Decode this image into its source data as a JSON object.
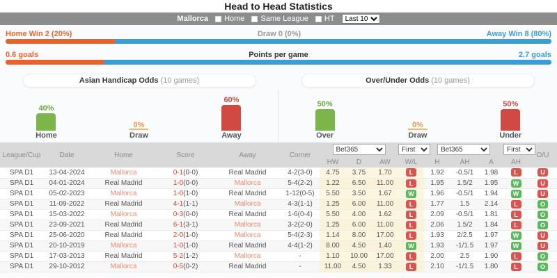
{
  "title": "Head to Head Statistics",
  "filterbar": {
    "team": "Mallorca",
    "checkboxes": [
      "Home",
      "Same League",
      "HT"
    ],
    "range_select": "Last 10"
  },
  "summary_bars": [
    {
      "left": "Home Win 2 (20%)",
      "center": "Draw 0 (0%)",
      "right": "Away Win 8 (80%)",
      "left_pct": 20
    },
    {
      "left": "0.6 goals",
      "center": "Points per game",
      "right": "2.7 goals",
      "left_pct": 18
    }
  ],
  "section_buttons": [
    {
      "label": "Asian Handicap Odds",
      "sub": " (10 games)"
    },
    {
      "label": "Over/Under Odds",
      "sub": " (10 games)"
    }
  ],
  "chart_data": [
    {
      "type": "bar",
      "title": "Asian Handicap Odds (10 games)",
      "categories": [
        "Home",
        "Draw",
        "Away"
      ],
      "values": [
        40,
        0,
        60
      ],
      "value_labels": [
        "40%",
        "0%",
        "60%"
      ],
      "unit": "%",
      "ylim": [
        0,
        100
      ]
    },
    {
      "type": "bar",
      "title": "Over/Under Odds (10 games)",
      "categories": [
        "Over",
        "Draw",
        "Under"
      ],
      "values": [
        50,
        0,
        50
      ],
      "value_labels": [
        "50%",
        "0%",
        "50%"
      ],
      "unit": "%",
      "ylim": [
        0,
        100
      ]
    }
  ],
  "colors": {
    "accent_orange": "#e8632c",
    "accent_blue": "#3b9dd6",
    "bar_green": "#7cb54a",
    "bar_red": "#d04a42",
    "bar_orange": "#ef9445",
    "badge_win": "#5cb85c",
    "badge_loss": "#d9534f",
    "team_highlight": "#ef8a70"
  },
  "table": {
    "main_headers": [
      "League/Cup",
      "Date",
      "Home",
      "Score",
      "Away",
      "Corner"
    ],
    "bookmaker_select": "Bet365",
    "timing_select": "First",
    "sub_headers_1x2": [
      "HW",
      "D",
      "AW",
      "W/L"
    ],
    "sub_headers_ah": [
      "H",
      "AH",
      "A",
      "AH"
    ],
    "ou_header": "O/U",
    "rows": [
      {
        "league": "SPA D1",
        "date": "13-04-2024",
        "home": "Mallorca",
        "score": "0-1",
        "ht": "(0-0)",
        "away": "Real Madrid",
        "corner": "4-2(3-0)",
        "hw": "4.75",
        "d": "3.75",
        "aw": "1.70",
        "wl": "L",
        "h": "1.92",
        "ah": "-0.5/1",
        "a": "1.98",
        "ahr": "L",
        "ou": "U"
      },
      {
        "league": "SPA D1",
        "date": "04-01-2024",
        "home": "Real Madrid",
        "score": "1-0",
        "ht": "(0-0)",
        "away": "Mallorca",
        "corner": "5-4(2-2)",
        "hw": "1.22",
        "d": "6.50",
        "aw": "11.00",
        "wl": "L",
        "h": "1.95",
        "ah": "1.5/2",
        "a": "1.95",
        "ahr": "W",
        "ou": "U"
      },
      {
        "league": "SPA D1",
        "date": "05-02-2023",
        "home": "Mallorca",
        "score": "1-0",
        "ht": "(1-0)",
        "away": "Real Madrid",
        "corner": "1-12(0-5)",
        "hw": "5.50",
        "d": "3.50",
        "aw": "1.67",
        "wl": "W",
        "h": "1.96",
        "ah": "-0.5/1",
        "a": "1.94",
        "ahr": "W",
        "ou": "U"
      },
      {
        "league": "SPA D1",
        "date": "11-09-2022",
        "home": "Real Madrid",
        "score": "4-1",
        "ht": "(1-1)",
        "away": "Mallorca",
        "corner": "4-3(1-1)",
        "hw": "1.25",
        "d": "6.00",
        "aw": "11.00",
        "wl": "L",
        "h": "1.77",
        "ah": "1.5",
        "a": "2.14",
        "ahr": "L",
        "ou": "O"
      },
      {
        "league": "SPA D1",
        "date": "15-03-2022",
        "home": "Mallorca",
        "score": "0-3",
        "ht": "(0-0)",
        "away": "Real Madrid",
        "corner": "1-6(0-4)",
        "hw": "5.50",
        "d": "4.00",
        "aw": "1.62",
        "wl": "L",
        "h": "2.09",
        "ah": "-0.5/1",
        "a": "1.81",
        "ahr": "L",
        "ou": "O"
      },
      {
        "league": "SPA D1",
        "date": "23-09-2021",
        "home": "Real Madrid",
        "score": "6-1",
        "ht": "(3-1)",
        "away": "Mallorca",
        "corner": "3-2(2-0)",
        "hw": "1.25",
        "d": "6.00",
        "aw": "11.00",
        "wl": "L",
        "h": "2.06",
        "ah": "1.5/2",
        "a": "1.84",
        "ahr": "L",
        "ou": "O"
      },
      {
        "league": "SPA D1",
        "date": "25-06-2020",
        "home": "Real Madrid",
        "score": "2-0",
        "ht": "(1-0)",
        "away": "Mallorca",
        "corner": "5-4(2-3)",
        "hw": "1.14",
        "d": "8.00",
        "aw": "17.00",
        "wl": "L",
        "h": "1.93",
        "ah": "2/2.5",
        "a": "1.97",
        "ahr": "W",
        "ou": "U"
      },
      {
        "league": "SPA D1",
        "date": "20-10-2019",
        "home": "Mallorca",
        "score": "1-0",
        "ht": "(1-0)",
        "away": "Real Madrid",
        "corner": "4-4(1-2)",
        "hw": "8.00",
        "d": "4.50",
        "aw": "1.40",
        "wl": "W",
        "h": "1.93",
        "ah": "-1/1.5",
        "a": "1.97",
        "ahr": "W",
        "ou": "U"
      },
      {
        "league": "SPA D1",
        "date": "17-03-2013",
        "home": "Real Madrid",
        "score": "5-2",
        "ht": "(1-2)",
        "away": "Mallorca",
        "corner": "-",
        "hw": "1.10",
        "d": "10.00",
        "aw": "17.00",
        "wl": "L",
        "h": "2.00",
        "ah": "2.5",
        "a": "1.90",
        "ahr": "L",
        "ou": "O"
      },
      {
        "league": "SPA D1",
        "date": "29-10-2012",
        "home": "Mallorca",
        "score": "0-5",
        "ht": "(0-2)",
        "away": "Real Madrid",
        "corner": "-",
        "hw": "11.00",
        "d": "4.50",
        "aw": "1.33",
        "wl": "L",
        "h": "2.10",
        "ah": "-1/1.5",
        "a": "1.80",
        "ahr": "L",
        "ou": "O"
      }
    ]
  }
}
